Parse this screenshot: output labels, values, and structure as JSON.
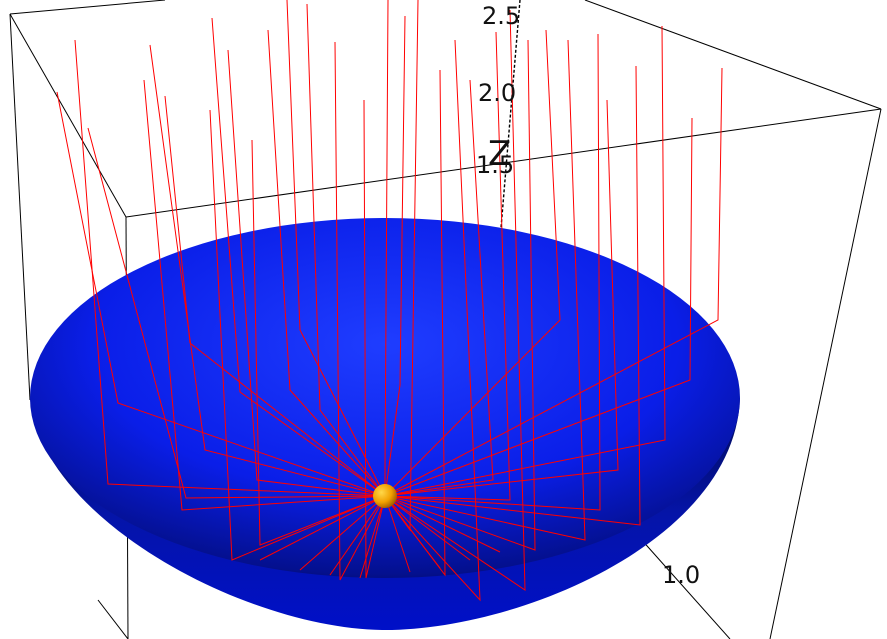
{
  "figure": {
    "z_axis": {
      "title": "Z",
      "ticks": [
        "2.5",
        "2.0",
        "1.5"
      ]
    },
    "other_axis_ticks": [
      "1.0"
    ],
    "colors": {
      "background": "#ffffff",
      "bowl": "#0a1cff",
      "bowl_dark": "#000533",
      "rays": "#ff0000",
      "focus": "#f0a000",
      "box": "#000000"
    },
    "objects": [
      "paraboloid-reflector",
      "vertical-incoming-rays",
      "reflected-rays",
      "focal-point"
    ]
  }
}
